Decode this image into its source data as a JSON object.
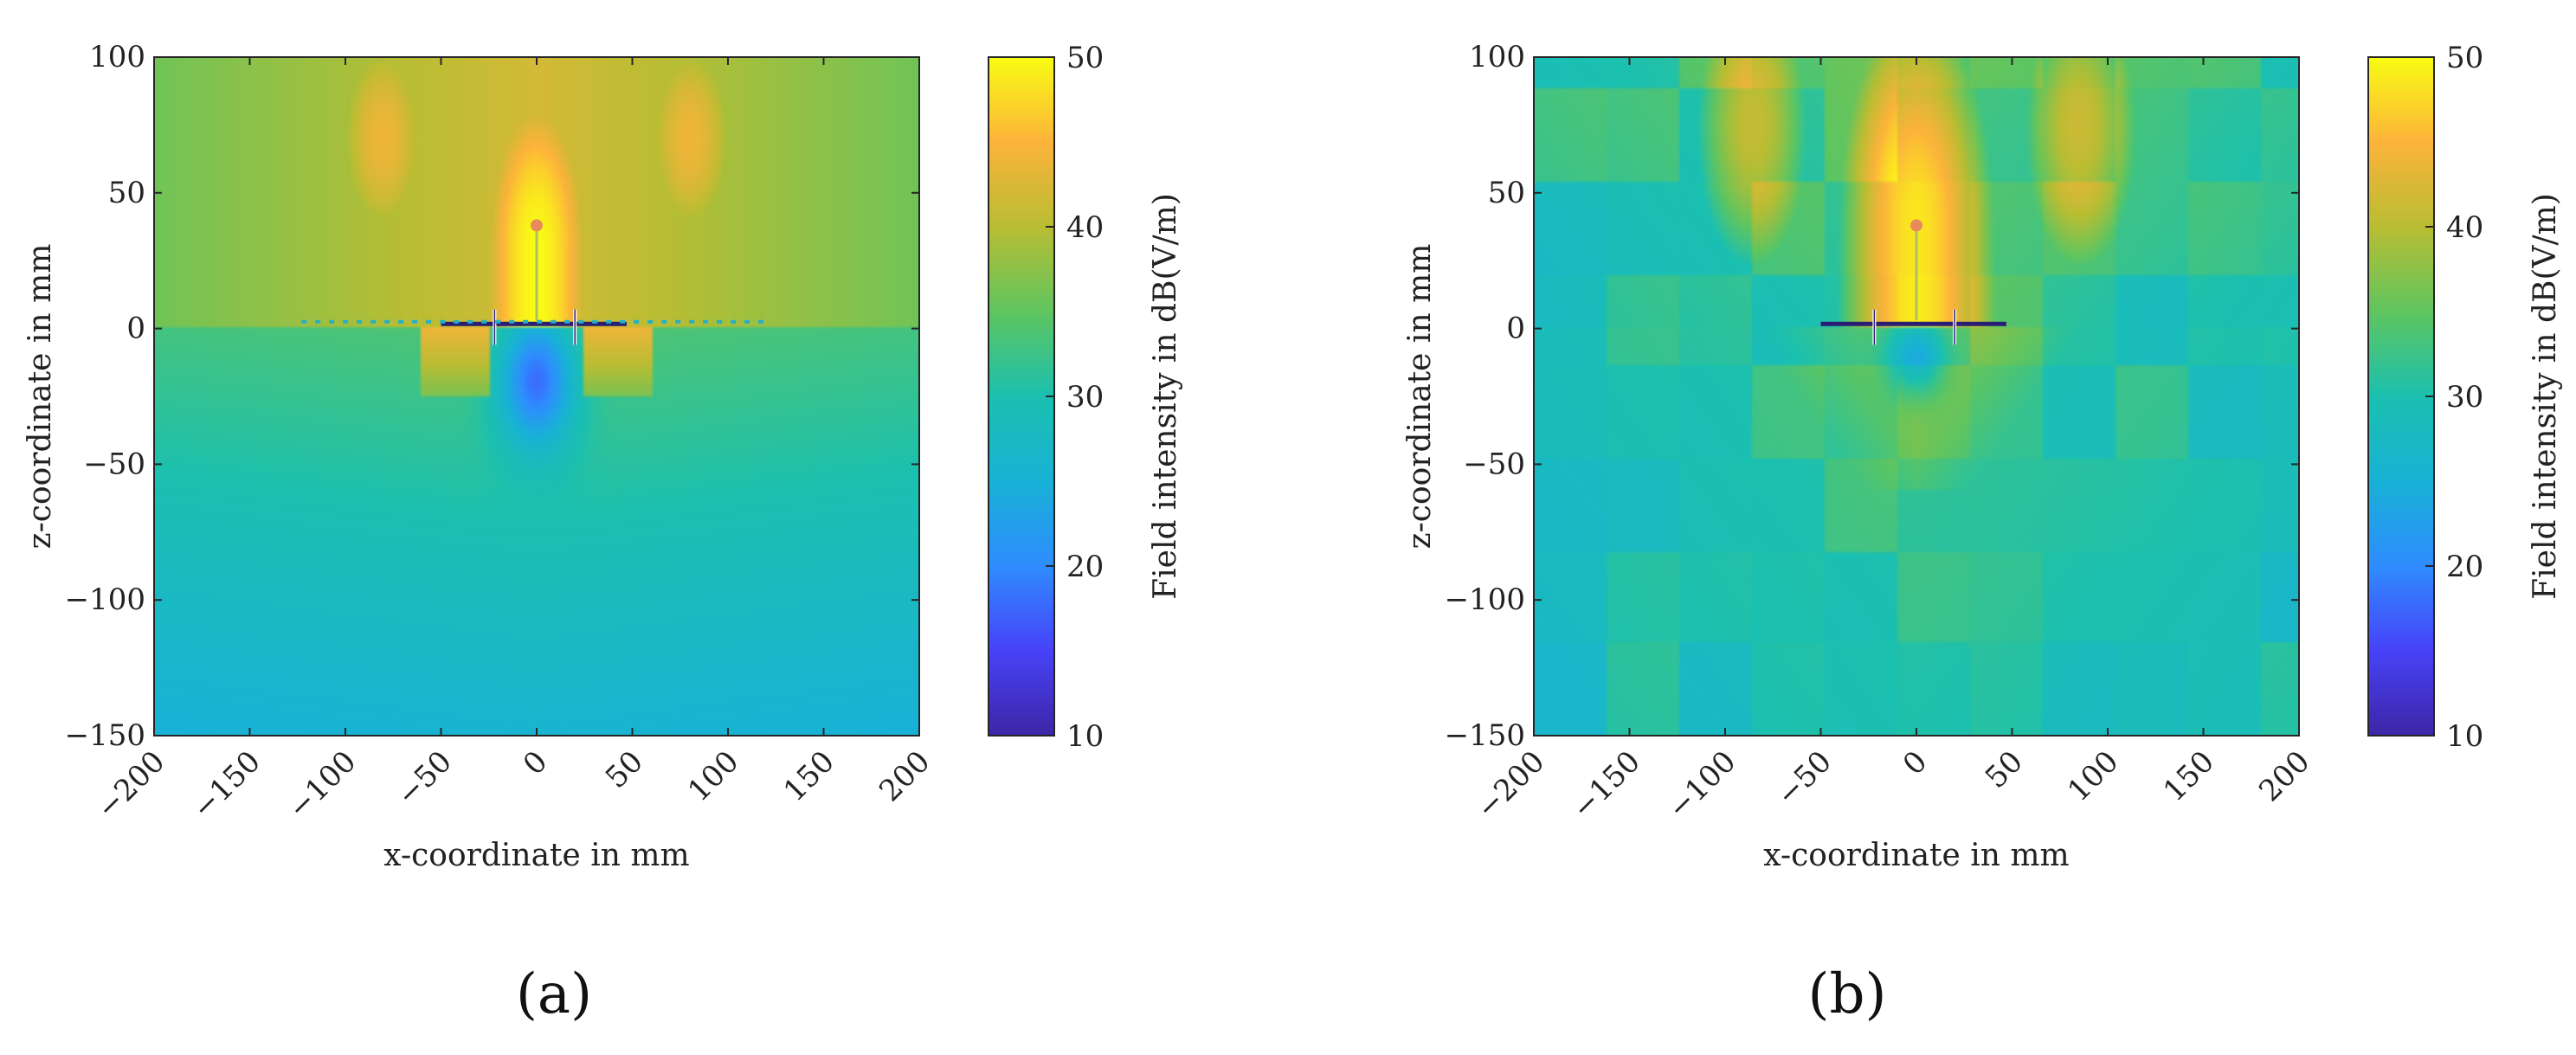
{
  "panels": [
    {
      "label": "(a)"
    },
    {
      "label": "(b)"
    }
  ],
  "colors": {
    "colormap": [
      "#3e26a8",
      "#4743f8",
      "#2f8dff",
      "#18b2d6",
      "#1bc0b0",
      "#5fc560",
      "#b9bd33",
      "#fcb33b",
      "#f9fb15"
    ],
    "structure": "#2a1e74"
  },
  "chart_data": [
    {
      "type": "heatmap",
      "panel": "(a)",
      "xlabel": "x-coordinate in mm",
      "ylabel": "z-coordinate in mm",
      "xlim": [
        -200,
        200
      ],
      "ylim": [
        -150,
        100
      ],
      "x_ticks": [
        -200,
        -150,
        -100,
        -50,
        0,
        50,
        100,
        150,
        200
      ],
      "y_ticks": [
        -150,
        -100,
        -50,
        0,
        50,
        100
      ],
      "x_tick_labels": [
        "−200",
        "−150",
        "−100",
        "−50",
        "0",
        "50",
        "100",
        "150",
        "200"
      ],
      "y_tick_labels": [
        "−150",
        "−100",
        "−50",
        "0",
        "50",
        "100"
      ],
      "colorbar": {
        "label": "Field intensity in dB(V/m)",
        "range": [
          10,
          50
        ],
        "ticks": [
          10,
          20,
          30,
          40,
          50
        ],
        "tick_labels": [
          "10",
          "20",
          "30",
          "40",
          "50"
        ]
      },
      "value_min": 10,
      "value_max": 50
    },
    {
      "type": "heatmap",
      "panel": "(b)",
      "xlabel": "x-coordinate in mm",
      "ylabel": "z-coordinate in mm",
      "xlim": [
        -200,
        200
      ],
      "ylim": [
        -150,
        100
      ],
      "x_ticks": [
        -200,
        -150,
        -100,
        -50,
        0,
        50,
        100,
        150,
        200
      ],
      "y_ticks": [
        -150,
        -100,
        -50,
        0,
        50,
        100
      ],
      "x_tick_labels": [
        "−200",
        "−150",
        "−100",
        "−50",
        "0",
        "50",
        "100",
        "150",
        "200"
      ],
      "y_tick_labels": [
        "−150",
        "−100",
        "−50",
        "0",
        "50",
        "100"
      ],
      "colorbar": {
        "label": "Field intensity in dB(V/m)",
        "range": [
          10,
          50
        ],
        "ticks": [
          10,
          20,
          30,
          40,
          50
        ],
        "tick_labels": [
          "10",
          "20",
          "30",
          "40",
          "50"
        ]
      },
      "value_min": 10,
      "value_max": 50
    }
  ]
}
